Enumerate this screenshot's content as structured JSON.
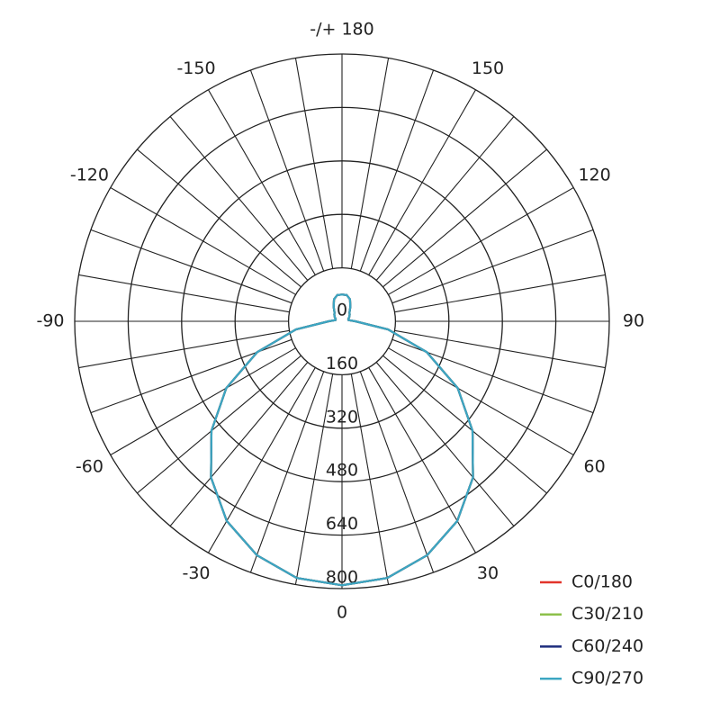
{
  "chart_data": {
    "type": "polar",
    "theta": [
      -180,
      -170,
      -160,
      -150,
      -140,
      -130,
      -120,
      -110,
      -100,
      -90,
      -80,
      -70,
      -60,
      -50,
      -40,
      -30,
      -20,
      -10,
      0,
      10,
      20,
      30,
      40,
      50,
      60,
      70,
      80,
      90,
      100,
      110,
      120,
      130,
      140,
      150,
      160,
      170,
      180
    ],
    "thetaticks": [
      {
        "value": 180,
        "label": "-/+ 180"
      },
      150,
      120,
      90,
      60,
      30,
      0,
      -30,
      -60,
      -90,
      -120,
      -150
    ],
    "rlim": [
      0,
      800
    ],
    "rticks": [
      0,
      160,
      320,
      480,
      640,
      800
    ],
    "grid": true,
    "legend": "lower right",
    "series": [
      {
        "name": "C0/180",
        "color": "#e2342b",
        "values": [
          80,
          80,
          70,
          50,
          35,
          30,
          25,
          20,
          20,
          40,
          140,
          270,
          400,
          510,
          610,
          690,
          745,
          780,
          790,
          780,
          745,
          690,
          610,
          510,
          400,
          270,
          140,
          40,
          20,
          20,
          25,
          30,
          35,
          50,
          70,
          80,
          80
        ]
      },
      {
        "name": "C30/210",
        "color": "#8cc04b",
        "values": [
          80,
          80,
          70,
          50,
          35,
          30,
          25,
          20,
          20,
          40,
          140,
          270,
          400,
          510,
          610,
          690,
          745,
          780,
          790,
          780,
          745,
          690,
          610,
          510,
          400,
          270,
          140,
          40,
          20,
          20,
          25,
          30,
          35,
          50,
          70,
          80,
          80
        ]
      },
      {
        "name": "C60/240",
        "color": "#1e2d7d",
        "values": [
          80,
          80,
          70,
          50,
          35,
          30,
          25,
          20,
          20,
          40,
          140,
          270,
          400,
          510,
          610,
          690,
          745,
          780,
          790,
          780,
          745,
          690,
          610,
          510,
          400,
          270,
          140,
          40,
          20,
          20,
          25,
          30,
          35,
          50,
          70,
          80,
          80
        ]
      },
      {
        "name": "C90/270",
        "color": "#3ca6c2",
        "values": [
          80,
          80,
          70,
          50,
          35,
          30,
          25,
          20,
          20,
          40,
          140,
          270,
          400,
          510,
          610,
          690,
          745,
          780,
          790,
          780,
          745,
          690,
          610,
          510,
          400,
          270,
          140,
          40,
          20,
          20,
          25,
          30,
          35,
          50,
          70,
          80,
          80
        ]
      }
    ]
  }
}
